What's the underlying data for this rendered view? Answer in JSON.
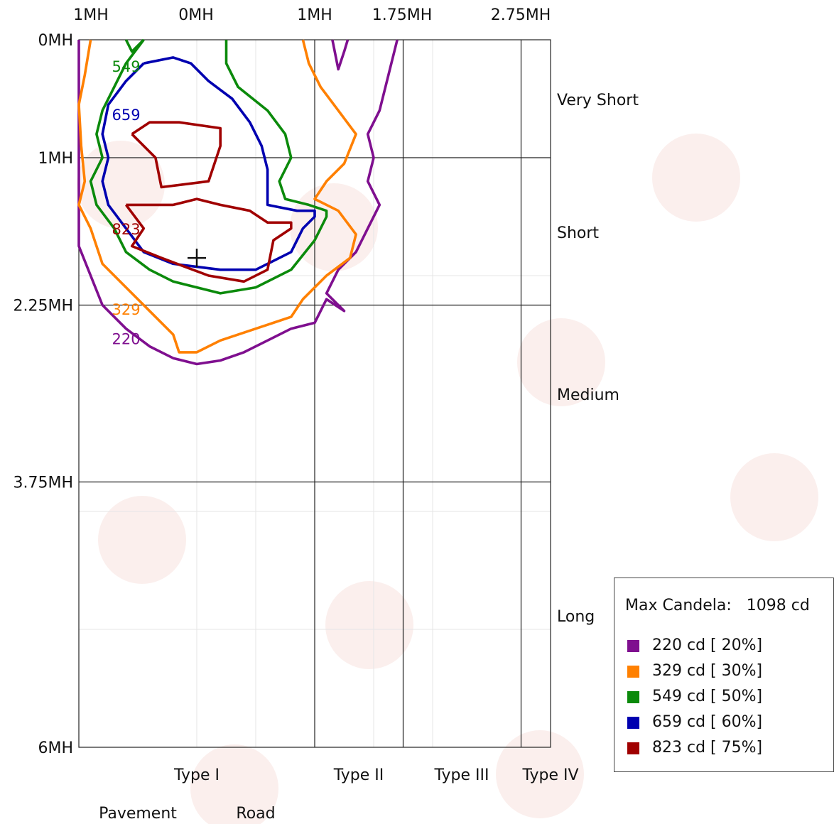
{
  "chart_data": {
    "type": "isocandela-contour",
    "x_axis_labels": [
      "1MH",
      "0MH",
      "1MH",
      "1.75MH",
      "2.75MH"
    ],
    "y_axis_labels": [
      "0MH",
      "1MH",
      "2.25MH",
      "3.75MH",
      "6MH"
    ],
    "distance_classes": [
      "Very Short",
      "Short",
      "Medium",
      "Long"
    ],
    "lateral_types": [
      "Type I",
      "Type II",
      "Type III",
      "Type IV"
    ],
    "side_labels": [
      "Pavement",
      "Road"
    ],
    "legend": {
      "max_label": "Max Candela:",
      "max_value": "1098 cd",
      "placement": "bottom-right"
    },
    "series": [
      {
        "value": 220,
        "percent": 20,
        "label": "220 cd [ 20%]",
        "color": "#7f0f8f",
        "contour_label": "220",
        "points": [
          [
            -1,
            0
          ],
          [
            -1,
            1.75
          ],
          [
            -0.9,
            2
          ],
          [
            -0.8,
            2.25
          ],
          [
            -0.6,
            2.45
          ],
          [
            -0.4,
            2.6
          ],
          [
            -0.2,
            2.7
          ],
          [
            0,
            2.75
          ],
          [
            0.2,
            2.72
          ],
          [
            0.4,
            2.65
          ],
          [
            0.6,
            2.55
          ],
          [
            0.8,
            2.45
          ],
          [
            1,
            2.4
          ],
          [
            1.1,
            2.2
          ],
          [
            1.25,
            2.3
          ],
          [
            1.1,
            2.15
          ],
          [
            1.2,
            1.95
          ],
          [
            1.35,
            1.8
          ],
          [
            1.45,
            1.6
          ],
          [
            1.55,
            1.4
          ],
          [
            1.45,
            1.2
          ],
          [
            1.5,
            1.0
          ],
          [
            1.45,
            0.8
          ],
          [
            1.55,
            0.6
          ],
          [
            1.6,
            0.4
          ],
          [
            1.65,
            0.2
          ],
          [
            1.7,
            0
          ]
        ]
      },
      {
        "value": 220,
        "percent": 20,
        "label": "",
        "color": "#7f0f8f",
        "contour_label": "",
        "points": [
          [
            1.15,
            0
          ],
          [
            1.2,
            0.25
          ],
          [
            1.25,
            0.1
          ],
          [
            1.28,
            0
          ]
        ]
      },
      {
        "value": 329,
        "percent": 30,
        "label": "329 cd [ 30%]",
        "color": "#ff8000",
        "contour_label": "329",
        "points": [
          [
            -0.9,
            0
          ],
          [
            -0.95,
            0.3
          ],
          [
            -1,
            0.55
          ],
          [
            -0.98,
            0.9
          ],
          [
            -0.95,
            1.2
          ],
          [
            -1,
            1.4
          ],
          [
            -0.9,
            1.6
          ],
          [
            -0.8,
            1.9
          ],
          [
            -0.6,
            2.1
          ],
          [
            -0.4,
            2.3
          ],
          [
            -0.2,
            2.5
          ],
          [
            -0.15,
            2.65
          ],
          [
            0,
            2.65
          ],
          [
            0.2,
            2.55
          ],
          [
            0.5,
            2.45
          ],
          [
            0.8,
            2.35
          ],
          [
            0.9,
            2.2
          ],
          [
            1.1,
            2.0
          ],
          [
            1.3,
            1.85
          ],
          [
            1.35,
            1.65
          ],
          [
            1.2,
            1.45
          ],
          [
            1.0,
            1.35
          ],
          [
            1.1,
            1.2
          ],
          [
            1.25,
            1.05
          ],
          [
            1.35,
            0.8
          ],
          [
            1.2,
            0.6
          ],
          [
            1.05,
            0.4
          ],
          [
            0.95,
            0.2
          ],
          [
            0.9,
            0
          ]
        ]
      },
      {
        "value": 549,
        "percent": 50,
        "label": "549 cd [ 50%]",
        "color": "#0b8a0b",
        "contour_label": "549",
        "points": [
          [
            -0.45,
            0
          ],
          [
            -0.6,
            0.2
          ],
          [
            -0.7,
            0.4
          ],
          [
            -0.8,
            0.6
          ],
          [
            -0.85,
            0.8
          ],
          [
            -0.8,
            1.0
          ],
          [
            -0.9,
            1.2
          ],
          [
            -0.85,
            1.4
          ],
          [
            -0.7,
            1.6
          ],
          [
            -0.6,
            1.8
          ],
          [
            -0.4,
            1.95
          ],
          [
            -0.2,
            2.05
          ],
          [
            0.2,
            2.15
          ],
          [
            0.5,
            2.1
          ],
          [
            0.8,
            1.95
          ],
          [
            1.0,
            1.7
          ],
          [
            1.1,
            1.5
          ],
          [
            1.1,
            1.45
          ],
          [
            0.95,
            1.4
          ],
          [
            0.75,
            1.35
          ],
          [
            0.7,
            1.2
          ],
          [
            0.8,
            1.0
          ],
          [
            0.75,
            0.8
          ],
          [
            0.6,
            0.6
          ],
          [
            0.35,
            0.4
          ],
          [
            0.25,
            0.2
          ],
          [
            0.25,
            0
          ]
        ]
      },
      {
        "value": 549,
        "percent": 50,
        "label": "",
        "color": "#0b8a0b",
        "contour_label": "",
        "points": [
          [
            -0.6,
            0
          ],
          [
            -0.55,
            0.1
          ],
          [
            -0.45,
            0
          ]
        ]
      },
      {
        "value": 659,
        "percent": 60,
        "label": "659 cd [ 60%]",
        "color": "#0000b0",
        "contour_label": "659",
        "points": [
          [
            -0.45,
            0.2
          ],
          [
            -0.6,
            0.35
          ],
          [
            -0.75,
            0.55
          ],
          [
            -0.8,
            0.8
          ],
          [
            -0.75,
            1.0
          ],
          [
            -0.8,
            1.2
          ],
          [
            -0.75,
            1.4
          ],
          [
            -0.6,
            1.6
          ],
          [
            -0.45,
            1.8
          ],
          [
            -0.2,
            1.9
          ],
          [
            0.2,
            1.95
          ],
          [
            0.5,
            1.95
          ],
          [
            0.8,
            1.8
          ],
          [
            0.9,
            1.6
          ],
          [
            1.0,
            1.5
          ],
          [
            1.0,
            1.45
          ],
          [
            0.85,
            1.45
          ],
          [
            0.6,
            1.4
          ],
          [
            0.6,
            1.1
          ],
          [
            0.55,
            0.9
          ],
          [
            0.45,
            0.7
          ],
          [
            0.3,
            0.5
          ],
          [
            0.1,
            0.35
          ],
          [
            -0.05,
            0.2
          ],
          [
            -0.2,
            0.15
          ],
          [
            -0.45,
            0.2
          ]
        ]
      },
      {
        "value": 823,
        "percent": 75,
        "label": "823 cd [ 75%]",
        "color": "#a00000",
        "contour_label": "823",
        "points": [
          [
            -0.6,
            1.4
          ],
          [
            -0.45,
            1.6
          ],
          [
            -0.55,
            1.75
          ],
          [
            -0.3,
            1.85
          ],
          [
            0.1,
            2.0
          ],
          [
            0.4,
            2.05
          ],
          [
            0.6,
            1.95
          ],
          [
            0.65,
            1.7
          ],
          [
            0.8,
            1.6
          ],
          [
            0.8,
            1.55
          ],
          [
            0.6,
            1.55
          ],
          [
            0.45,
            1.45
          ],
          [
            0.2,
            1.4
          ],
          [
            0,
            1.35
          ],
          [
            -0.2,
            1.4
          ],
          [
            -0.6,
            1.4
          ]
        ]
      },
      {
        "value": 823,
        "percent": 75,
        "label": "",
        "color": "#a00000",
        "contour_label": "",
        "points": [
          [
            -0.55,
            0.8
          ],
          [
            -0.4,
            0.7
          ],
          [
            -0.15,
            0.7
          ],
          [
            0.2,
            0.75
          ],
          [
            0.2,
            0.9
          ],
          [
            0.1,
            1.2
          ],
          [
            -0.3,
            1.25
          ],
          [
            -0.35,
            1.0
          ],
          [
            -0.55,
            0.8
          ]
        ]
      }
    ],
    "max_point": {
      "x": 0,
      "y": 1.85
    }
  }
}
